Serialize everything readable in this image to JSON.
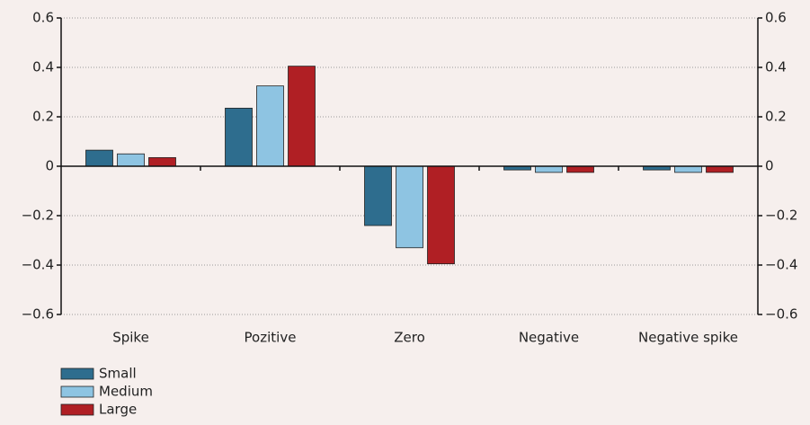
{
  "chart_data": {
    "type": "bar",
    "categories": [
      "Spike",
      "Pozitive",
      "Zero",
      "Negative",
      "Negative spike"
    ],
    "series": [
      {
        "name": "Small",
        "color": "#2e6d8e",
        "values": [
          0.065,
          0.235,
          -0.24,
          -0.015,
          -0.015
        ]
      },
      {
        "name": "Medium",
        "color": "#8ec4e2",
        "values": [
          0.05,
          0.325,
          -0.33,
          -0.025,
          -0.025
        ]
      },
      {
        "name": "Large",
        "color": "#b01f24",
        "values": [
          0.035,
          0.405,
          -0.395,
          -0.025,
          -0.025
        ]
      }
    ],
    "ylim": [
      -0.6,
      0.6
    ],
    "yticks": [
      {
        "value": -0.6,
        "label": "−0.6"
      },
      {
        "value": -0.4,
        "label": "−0.4"
      },
      {
        "value": -0.2,
        "label": "−0.2"
      },
      0,
      0.2,
      0.4,
      0.6
    ],
    "y2lim": [
      -0.6,
      0.6
    ],
    "y2ticks": [
      {
        "value": -0.6,
        "label": "−0.6"
      },
      {
        "value": -0.4,
        "label": "−0.4"
      },
      {
        "value": -0.2,
        "label": "−0.2"
      },
      0,
      0.2,
      0.4,
      0.6
    ],
    "grid": true
  }
}
